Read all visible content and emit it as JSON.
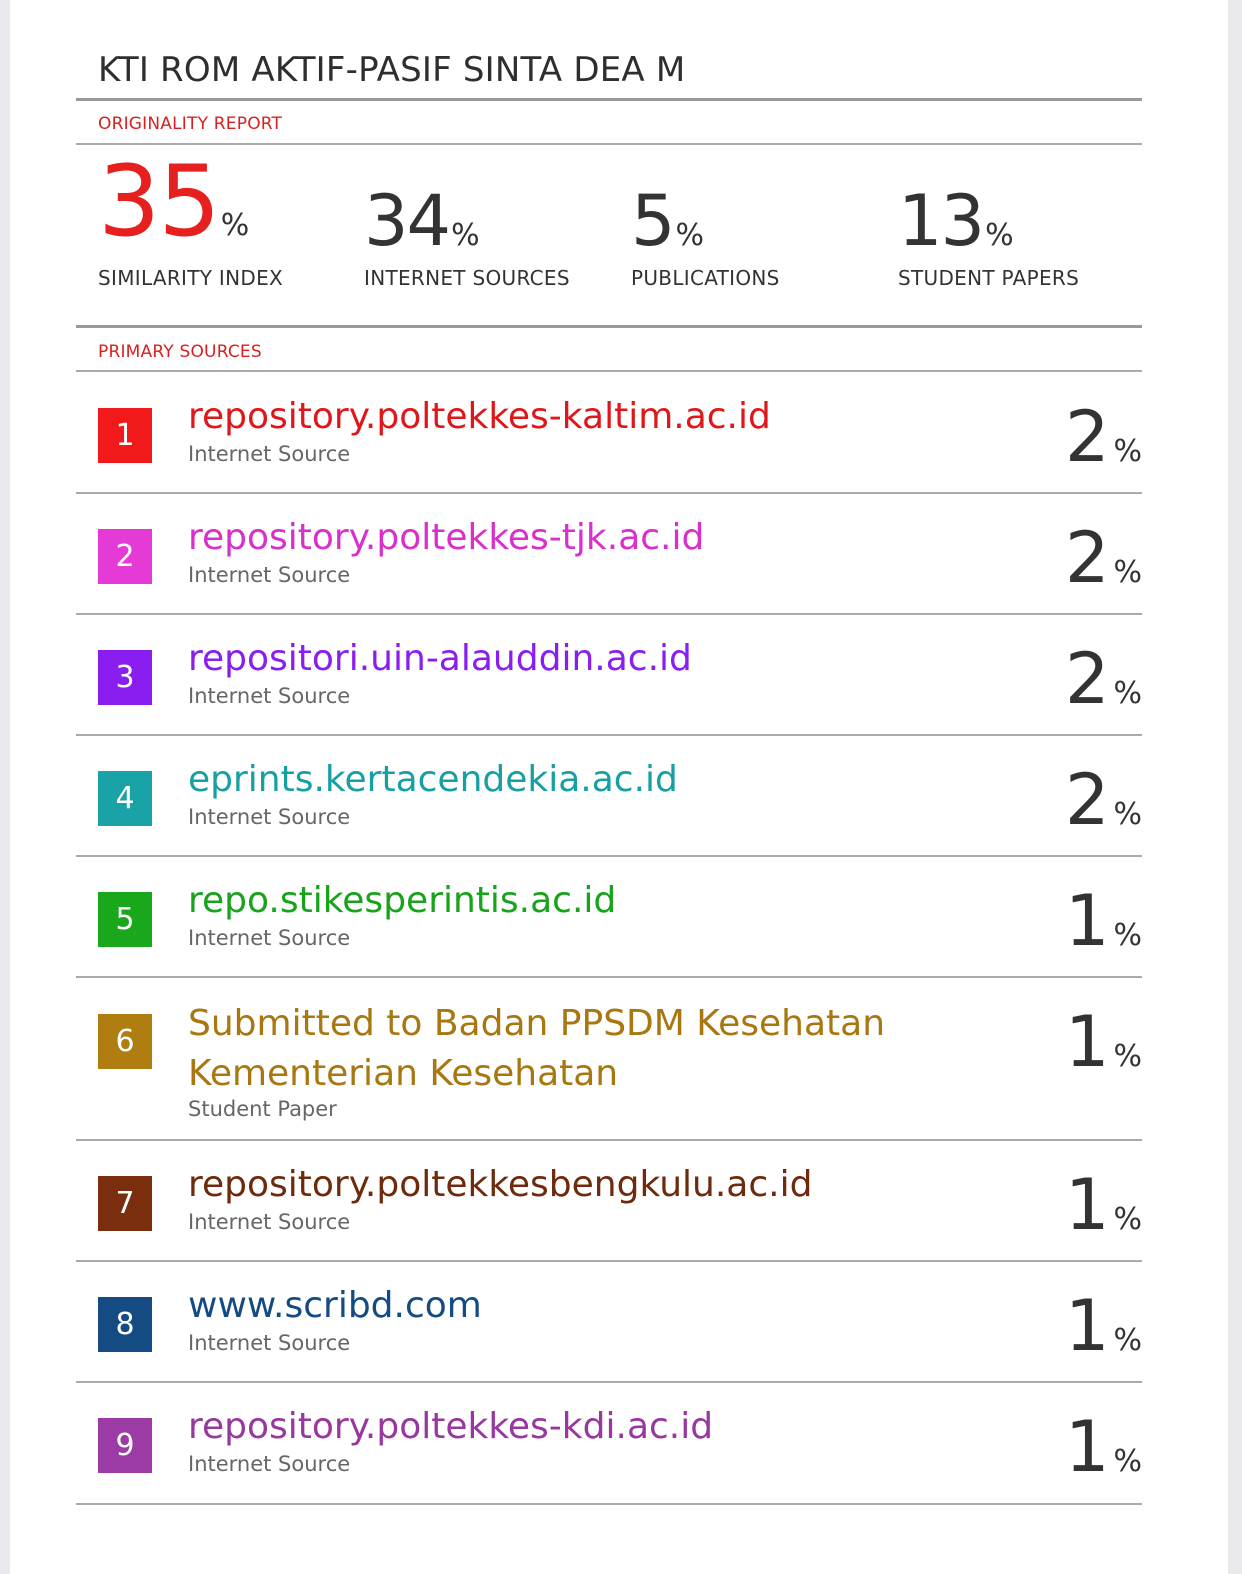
{
  "document": {
    "title": "KTI ROM AKTIF-PASIF SINTA DEA M",
    "originality_label": "ORIGINALITY REPORT",
    "primary_label": "PRIMARY SOURCES",
    "percent_sign": "%"
  },
  "stats": [
    {
      "value": "35",
      "label": "SIMILARITY INDEX"
    },
    {
      "value": "34",
      "label": "INTERNET SOURCES"
    },
    {
      "value": "5",
      "label": "PUBLICATIONS"
    },
    {
      "value": "13",
      "label": "STUDENT PAPERS"
    }
  ],
  "sources": [
    {
      "rank": "1",
      "name": "repository.poltekkes-kaltim.ac.id",
      "type": "Internet Source",
      "percent": "2",
      "color": "#f2191b"
    },
    {
      "rank": "2",
      "name": "repository.poltekkes-tjk.ac.id",
      "type": "Internet Source",
      "percent": "2",
      "color": "#e63ad7"
    },
    {
      "rank": "3",
      "name": "repositori.uin-alauddin.ac.id",
      "type": "Internet Source",
      "percent": "2",
      "color": "#8a1df0"
    },
    {
      "rank": "4",
      "name": "eprints.kertacendekia.ac.id",
      "type": "Internet Source",
      "percent": "2",
      "color": "#1aa3a6"
    },
    {
      "rank": "5",
      "name": "repo.stikesperintis.ac.id",
      "type": "Internet Source",
      "percent": "1",
      "color": "#19a81c"
    },
    {
      "rank": "6",
      "name": "Submitted to Badan PPSDM Kesehatan Kementerian Kesehatan",
      "name_line1": "Submitted to Badan PPSDM Kesehatan",
      "name_line2": "Kementerian Kesehatan",
      "type": "Student Paper",
      "percent": "1",
      "color": "#b07d10"
    },
    {
      "rank": "7",
      "name": "repository.poltekkesbengkulu.ac.id",
      "type": "Internet Source",
      "percent": "1",
      "color": "#7a2e0e"
    },
    {
      "rank": "8",
      "name": "www.scribd.com",
      "type": "Internet Source",
      "percent": "1",
      "color": "#134b82"
    },
    {
      "rank": "9",
      "name": "repository.poltekkes-kdi.ac.id",
      "type": "Internet Source",
      "percent": "1",
      "color": "#9c3aa6"
    }
  ]
}
